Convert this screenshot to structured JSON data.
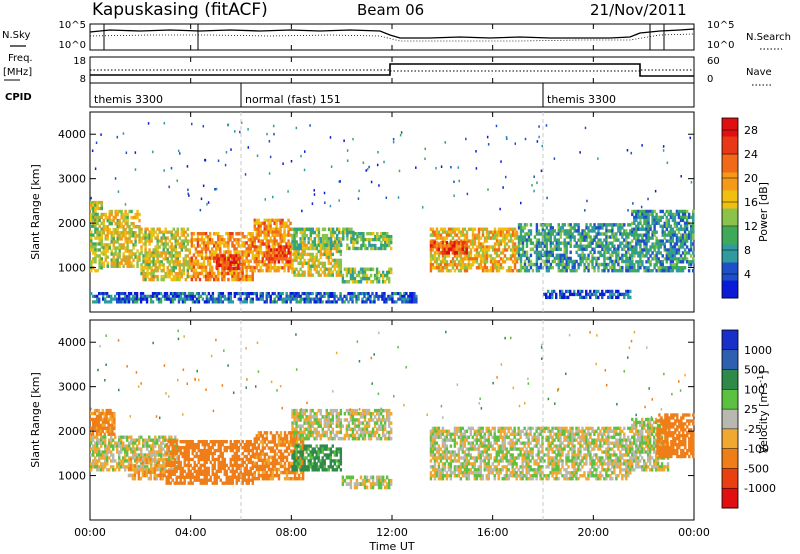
{
  "header": {
    "station": "Kapuskasing (fitACF)",
    "beam": "Beam 06",
    "date": "21/Nov/2011"
  },
  "left_labels": {
    "nsky": "N.Sky",
    "freq_line1": "Freq.",
    "freq_line2": "[MHz]",
    "cpid": "CPID"
  },
  "right_labels": {
    "nsearch": "N.Search",
    "nave": "Nave"
  },
  "noise_axis": {
    "left_ticks": [
      "10^5",
      "10^0"
    ],
    "right_ticks": [
      "10^5",
      "10^0"
    ]
  },
  "freq_axis": {
    "left_ticks": [
      "18",
      "8"
    ],
    "right_ticks": [
      "60",
      "0"
    ]
  },
  "cpid_segments": [
    {
      "label": "themis 3300",
      "start_hour": 0.0
    },
    {
      "label": "normal (fast) 151",
      "start_hour": 6.0
    },
    {
      "label": "themis 3300",
      "start_hour": 18.0
    }
  ],
  "time_axis": {
    "label": "Time UT",
    "range_hours": [
      0,
      24
    ],
    "ticks": [
      "00:00",
      "04:00",
      "08:00",
      "12:00",
      "16:00",
      "20:00",
      "00:00"
    ],
    "tick_hours": [
      0,
      4,
      8,
      12,
      16,
      20,
      24
    ]
  },
  "range_axis": {
    "label": "Slant Range [km]",
    "range_km": [
      0,
      4500
    ],
    "ticks": [
      "1000",
      "2000",
      "3000",
      "4000"
    ],
    "tick_values": [
      1000,
      2000,
      3000,
      4000
    ]
  },
  "power_scale": {
    "label": "Power [dB]",
    "ticks": [
      "4",
      "8",
      "12",
      "16",
      "20",
      "24",
      "28"
    ],
    "colors": [
      "#0a1bd8",
      "#1e4fc8",
      "#2f9aa0",
      "#3fa95a",
      "#8bc24a",
      "#f0c010",
      "#f59a18",
      "#f06a18",
      "#e83818",
      "#e01010"
    ]
  },
  "velocity_scale": {
    "label": "Velocity [m s-1]",
    "ticks": [
      "1000",
      "500",
      "100",
      "25",
      "-25",
      "-100",
      "-500",
      "-1000"
    ],
    "colors": [
      "#1830c8",
      "#2f5fb0",
      "#2f8a4a",
      "#5cc040",
      "#b8b8b0",
      "#f0a830",
      "#f07e18",
      "#e84010",
      "#e01010"
    ]
  },
  "chart_data": [
    {
      "type": "heatmap",
      "title": "Power",
      "xlabel": "Time UT",
      "ylabel": "Slant Range [km]",
      "xlim": [
        0,
        24
      ],
      "ylim": [
        0,
        4500
      ],
      "colorbar": "Power [dB]",
      "zlim": [
        0,
        30
      ],
      "regions": [
        {
          "t": [
            0.0,
            0.5
          ],
          "r": [
            900,
            2500
          ],
          "level": 14
        },
        {
          "t": [
            0.5,
            2.0
          ],
          "r": [
            1000,
            2300
          ],
          "level": 16
        },
        {
          "t": [
            2.0,
            4.0
          ],
          "r": [
            700,
            1900
          ],
          "level": 16
        },
        {
          "t": [
            4.0,
            6.5
          ],
          "r": [
            700,
            1800
          ],
          "level": 20
        },
        {
          "t": [
            5.0,
            6.0
          ],
          "r": [
            950,
            1300
          ],
          "level": 26
        },
        {
          "t": [
            6.5,
            8.0
          ],
          "r": [
            900,
            2100
          ],
          "level": 20
        },
        {
          "t": [
            7.0,
            8.0
          ],
          "r": [
            1100,
            1500
          ],
          "level": 25
        },
        {
          "t": [
            8.0,
            10.0
          ],
          "r": [
            800,
            1600
          ],
          "level": 16
        },
        {
          "t": [
            8.0,
            10.5
          ],
          "r": [
            1400,
            1900
          ],
          "level": 12
        },
        {
          "t": [
            10.0,
            12.0
          ],
          "r": [
            650,
            1000
          ],
          "level": 12
        },
        {
          "t": [
            10.5,
            12.0
          ],
          "r": [
            1400,
            1800
          ],
          "level": 12
        },
        {
          "t": [
            13.5,
            17.0
          ],
          "r": [
            900,
            1900
          ],
          "level": 18
        },
        {
          "t": [
            13.5,
            15.0
          ],
          "r": [
            1300,
            1600
          ],
          "level": 24
        },
        {
          "t": [
            17.0,
            21.5
          ],
          "r": [
            900,
            2000
          ],
          "level": 9
        },
        {
          "t": [
            21.5,
            24.0
          ],
          "r": [
            900,
            2300
          ],
          "level": 8
        },
        {
          "t": [
            18.0,
            21.5
          ],
          "r": [
            300,
            500
          ],
          "level": 4
        },
        {
          "t": [
            0.0,
            13.0
          ],
          "r": [
            200,
            450
          ],
          "level": 5
        }
      ]
    },
    {
      "type": "heatmap",
      "title": "Velocity",
      "xlabel": "Time UT",
      "ylabel": "Slant Range [km]",
      "xlim": [
        0,
        24
      ],
      "ylim": [
        0,
        4500
      ],
      "colorbar": "Velocity [m s-1]",
      "zlim": [
        -1000,
        1000
      ],
      "regions": [
        {
          "t": [
            0.0,
            1.0
          ],
          "r": [
            1900,
            2500
          ],
          "level": -150
        },
        {
          "t": [
            0.0,
            3.5
          ],
          "r": [
            1100,
            1900
          ],
          "level": 0
        },
        {
          "t": [
            1.5,
            3.0
          ],
          "r": [
            900,
            1400
          ],
          "level": -80
        },
        {
          "t": [
            3.0,
            6.5
          ],
          "r": [
            800,
            1800
          ],
          "level": -200
        },
        {
          "t": [
            6.5,
            8.5
          ],
          "r": [
            900,
            2000
          ],
          "level": -150
        },
        {
          "t": [
            8.0,
            10.0
          ],
          "r": [
            1100,
            1700
          ],
          "level": 150
        },
        {
          "t": [
            10.0,
            12.0
          ],
          "r": [
            700,
            1000
          ],
          "level": 0
        },
        {
          "t": [
            8.0,
            12.0
          ],
          "r": [
            1800,
            2500
          ],
          "level": 0
        },
        {
          "t": [
            13.5,
            21.5
          ],
          "r": [
            900,
            2100
          ],
          "level": 0
        },
        {
          "t": [
            21.5,
            23.0
          ],
          "r": [
            1100,
            2300
          ],
          "level": 0
        },
        {
          "t": [
            22.5,
            24.0
          ],
          "r": [
            1400,
            2400
          ],
          "level": -200
        }
      ]
    }
  ]
}
